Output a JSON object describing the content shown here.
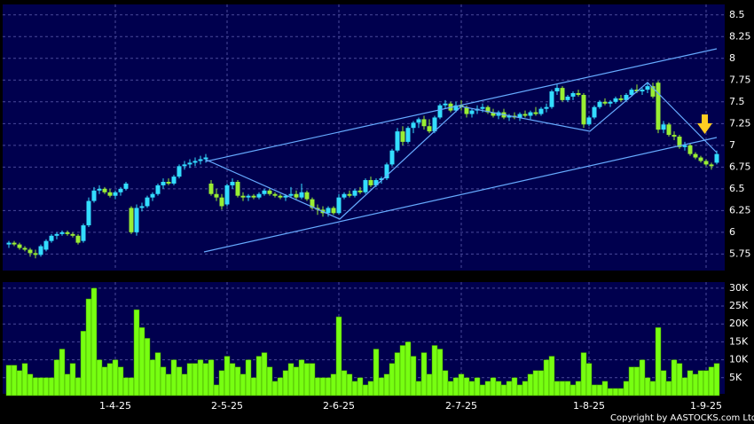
{
  "chart_data": {
    "type": "candlestick",
    "categories": [
      null,
      null,
      null,
      null,
      null,
      null,
      null,
      null,
      null,
      null,
      null,
      null,
      null,
      null,
      null,
      null,
      null,
      null,
      null,
      null,
      "1-4-25",
      null,
      null,
      null,
      null,
      null,
      null,
      null,
      null,
      null,
      null,
      null,
      null,
      null,
      null,
      null,
      null,
      null,
      null,
      null,
      null,
      "2-5-25",
      null,
      null,
      null,
      null,
      null,
      null,
      null,
      null,
      null,
      null,
      null,
      null,
      null,
      null,
      null,
      null,
      null,
      null,
      null,
      null,
      "2-6-25",
      null,
      null,
      null,
      null,
      null,
      null,
      null,
      null,
      null,
      null,
      null,
      null,
      null,
      null,
      null,
      null,
      null,
      null,
      null,
      null,
      null,
      null,
      "2-7-25",
      null,
      null,
      null,
      null,
      null,
      null,
      null,
      null,
      null,
      null,
      null,
      null,
      null,
      null,
      null,
      null,
      null,
      null,
      null,
      null,
      null,
      null,
      null,
      "1-8-25",
      null,
      null,
      null,
      null,
      null,
      null,
      null,
      null,
      null,
      null,
      null,
      null,
      null,
      null,
      null,
      null,
      null,
      null,
      null,
      null,
      null,
      "1-9-25",
      null,
      null
    ],
    "ohlc": [
      [
        5.86,
        5.9,
        5.82,
        5.88
      ],
      [
        5.88,
        5.9,
        5.84,
        5.86
      ],
      [
        5.86,
        5.88,
        5.8,
        5.82
      ],
      [
        5.82,
        5.84,
        5.78,
        5.8
      ],
      [
        5.8,
        5.82,
        5.72,
        5.76
      ],
      [
        5.76,
        5.8,
        5.7,
        5.74
      ],
      [
        5.74,
        5.86,
        5.72,
        5.84
      ],
      [
        5.8,
        5.92,
        5.78,
        5.9
      ],
      [
        5.9,
        5.98,
        5.88,
        5.96
      ],
      [
        5.96,
        6.0,
        5.92,
        5.98
      ],
      [
        5.98,
        6.02,
        5.96,
        6.0
      ],
      [
        6.0,
        6.02,
        5.96,
        5.98
      ],
      [
        5.98,
        6.0,
        5.94,
        5.96
      ],
      [
        5.96,
        5.98,
        5.86,
        5.88
      ],
      [
        5.9,
        6.1,
        5.88,
        6.08
      ],
      [
        6.08,
        6.4,
        6.06,
        6.36
      ],
      [
        6.36,
        6.52,
        6.34,
        6.48
      ],
      [
        6.48,
        6.54,
        6.44,
        6.5
      ],
      [
        6.5,
        6.52,
        6.44,
        6.46
      ],
      [
        6.46,
        6.5,
        6.4,
        6.42
      ],
      [
        6.42,
        6.48,
        6.38,
        6.46
      ],
      [
        6.46,
        6.52,
        6.42,
        6.5
      ],
      [
        6.5,
        6.58,
        6.48,
        6.56
      ],
      [
        6.28,
        6.3,
        5.98,
        6.0
      ],
      [
        6.0,
        6.32,
        5.96,
        6.28
      ],
      [
        6.28,
        6.34,
        6.24,
        6.3
      ],
      [
        6.3,
        6.42,
        6.28,
        6.4
      ],
      [
        6.4,
        6.46,
        6.36,
        6.44
      ],
      [
        6.44,
        6.56,
        6.42,
        6.54
      ],
      [
        6.54,
        6.62,
        6.5,
        6.58
      ],
      [
        6.58,
        6.62,
        6.54,
        6.56
      ],
      [
        6.56,
        6.66,
        6.54,
        6.64
      ],
      [
        6.64,
        6.78,
        6.62,
        6.76
      ],
      [
        6.76,
        6.82,
        6.72,
        6.78
      ],
      [
        6.78,
        6.84,
        6.74,
        6.8
      ],
      [
        6.8,
        6.86,
        6.76,
        6.82
      ],
      [
        6.82,
        6.88,
        6.78,
        6.84
      ],
      [
        6.84,
        6.9,
        6.8,
        6.86
      ],
      [
        6.56,
        6.6,
        6.42,
        6.44
      ],
      [
        6.44,
        6.5,
        6.36,
        6.4
      ],
      [
        6.4,
        6.44,
        6.26,
        6.3
      ],
      [
        6.32,
        6.56,
        6.3,
        6.54
      ],
      [
        6.54,
        6.62,
        6.5,
        6.58
      ],
      [
        6.58,
        6.6,
        6.4,
        6.42
      ],
      [
        6.42,
        6.46,
        6.36,
        6.4
      ],
      [
        6.4,
        6.44,
        6.36,
        6.42
      ],
      [
        6.42,
        6.44,
        6.38,
        6.4
      ],
      [
        6.4,
        6.46,
        6.38,
        6.44
      ],
      [
        6.44,
        6.5,
        6.42,
        6.48
      ],
      [
        6.48,
        6.5,
        6.42,
        6.44
      ],
      [
        6.44,
        6.46,
        6.4,
        6.42
      ],
      [
        6.42,
        6.44,
        6.38,
        6.4
      ],
      [
        6.4,
        6.44,
        6.36,
        6.42
      ],
      [
        6.42,
        6.52,
        6.4,
        6.44
      ],
      [
        6.44,
        6.48,
        6.38,
        6.4
      ],
      [
        6.4,
        6.56,
        6.38,
        6.46
      ],
      [
        6.46,
        6.48,
        6.36,
        6.38
      ],
      [
        6.38,
        6.4,
        6.26,
        6.28
      ],
      [
        6.28,
        6.32,
        6.2,
        6.26
      ],
      [
        6.26,
        6.3,
        6.18,
        6.22
      ],
      [
        6.22,
        6.3,
        6.18,
        6.28
      ],
      [
        6.28,
        6.3,
        6.2,
        6.22
      ],
      [
        6.22,
        6.44,
        6.2,
        6.4
      ],
      [
        6.4,
        6.46,
        6.38,
        6.44
      ],
      [
        6.44,
        6.48,
        6.4,
        6.42
      ],
      [
        6.42,
        6.5,
        6.4,
        6.48
      ],
      [
        6.48,
        6.52,
        6.44,
        6.46
      ],
      [
        6.46,
        6.62,
        6.44,
        6.6
      ],
      [
        6.6,
        6.64,
        6.52,
        6.54
      ],
      [
        6.54,
        6.62,
        6.52,
        6.6
      ],
      [
        6.6,
        6.64,
        6.56,
        6.62
      ],
      [
        6.62,
        6.8,
        6.6,
        6.78
      ],
      [
        6.78,
        6.96,
        6.76,
        6.94
      ],
      [
        6.94,
        7.2,
        6.92,
        7.16
      ],
      [
        7.16,
        7.22,
        7.0,
        7.04
      ],
      [
        7.04,
        7.22,
        7.02,
        7.2
      ],
      [
        7.2,
        7.28,
        7.14,
        7.26
      ],
      [
        7.26,
        7.32,
        7.2,
        7.3
      ],
      [
        7.3,
        7.34,
        7.18,
        7.22
      ],
      [
        7.22,
        7.3,
        7.14,
        7.16
      ],
      [
        7.16,
        7.34,
        7.14,
        7.32
      ],
      [
        7.32,
        7.48,
        7.3,
        7.46
      ],
      [
        7.46,
        7.52,
        7.42,
        7.48
      ],
      [
        7.48,
        7.5,
        7.38,
        7.4
      ],
      [
        7.4,
        7.5,
        7.38,
        7.46
      ],
      [
        7.46,
        7.52,
        7.4,
        7.44
      ],
      [
        7.44,
        7.46,
        7.32,
        7.36
      ],
      [
        7.36,
        7.42,
        7.32,
        7.4
      ],
      [
        7.4,
        7.46,
        7.36,
        7.42
      ],
      [
        7.42,
        7.48,
        7.38,
        7.44
      ],
      [
        7.44,
        7.46,
        7.36,
        7.38
      ],
      [
        7.38,
        7.42,
        7.32,
        7.34
      ],
      [
        7.34,
        7.4,
        7.3,
        7.38
      ],
      [
        7.38,
        7.42,
        7.3,
        7.32
      ],
      [
        7.32,
        7.36,
        7.28,
        7.34
      ],
      [
        7.34,
        7.38,
        7.3,
        7.32
      ],
      [
        7.32,
        7.38,
        7.28,
        7.36
      ],
      [
        7.36,
        7.4,
        7.32,
        7.34
      ],
      [
        7.34,
        7.4,
        7.3,
        7.38
      ],
      [
        7.38,
        7.44,
        7.34,
        7.36
      ],
      [
        7.36,
        7.44,
        7.34,
        7.42
      ],
      [
        7.42,
        7.48,
        7.38,
        7.44
      ],
      [
        7.44,
        7.64,
        7.42,
        7.62
      ],
      [
        7.62,
        7.7,
        7.58,
        7.66
      ],
      [
        7.66,
        7.68,
        7.5,
        7.52
      ],
      [
        7.52,
        7.58,
        7.5,
        7.56
      ],
      [
        7.56,
        7.62,
        7.52,
        7.6
      ],
      [
        7.6,
        7.64,
        7.56,
        7.58
      ],
      [
        7.58,
        7.6,
        7.2,
        7.24
      ],
      [
        7.24,
        7.34,
        7.22,
        7.32
      ],
      [
        7.32,
        7.46,
        7.3,
        7.44
      ],
      [
        7.44,
        7.52,
        7.42,
        7.5
      ],
      [
        7.5,
        7.54,
        7.46,
        7.48
      ],
      [
        7.48,
        7.52,
        7.44,
        7.5
      ],
      [
        7.5,
        7.56,
        7.48,
        7.54
      ],
      [
        7.54,
        7.58,
        7.5,
        7.52
      ],
      [
        7.52,
        7.6,
        7.5,
        7.58
      ],
      [
        7.58,
        7.66,
        7.56,
        7.64
      ],
      [
        7.64,
        7.7,
        7.6,
        7.62
      ],
      [
        7.62,
        7.66,
        7.58,
        7.64
      ],
      [
        7.64,
        7.72,
        7.6,
        7.68
      ],
      [
        7.68,
        7.72,
        7.54,
        7.56
      ],
      [
        7.72,
        7.74,
        7.14,
        7.18
      ],
      [
        7.18,
        7.28,
        7.14,
        7.24
      ],
      [
        7.24,
        7.26,
        7.1,
        7.12
      ],
      [
        7.12,
        7.16,
        7.06,
        7.1
      ],
      [
        7.1,
        7.12,
        6.96,
        6.98
      ],
      [
        6.98,
        7.04,
        6.94,
        7.0
      ],
      [
        7.0,
        7.02,
        6.88,
        6.9
      ],
      [
        6.9,
        6.92,
        6.84,
        6.86
      ],
      [
        6.86,
        6.88,
        6.8,
        6.82
      ],
      [
        6.82,
        6.84,
        6.76,
        6.78
      ],
      [
        6.78,
        6.8,
        6.72,
        6.76
      ],
      [
        6.8,
        6.94,
        6.78,
        6.9
      ]
    ],
    "ylim": [
      5.56,
      8.62
    ],
    "yticks": [
      5.75,
      6,
      6.25,
      6.5,
      6.75,
      7,
      7.25,
      7.5,
      7.75,
      8,
      8.25,
      8.5
    ],
    "up_color": "#33ddff",
    "down_color": "#99ee33",
    "volume": {
      "values": [
        8.5,
        8.5,
        7,
        9,
        6,
        5,
        5,
        5,
        5,
        10,
        13,
        6,
        9,
        5,
        18,
        27,
        30,
        10,
        8,
        9,
        10,
        8,
        5,
        5,
        24,
        19,
        16,
        10,
        12,
        8,
        6,
        10,
        8,
        6,
        9,
        9,
        10,
        9,
        10,
        3,
        7,
        11,
        9,
        8,
        6,
        10,
        5,
        11,
        12,
        8,
        4,
        5,
        7,
        9,
        8,
        10,
        9,
        9,
        5,
        5,
        5,
        6,
        22,
        7,
        6,
        4,
        5,
        3,
        4,
        13,
        5,
        6,
        9,
        12,
        14,
        15,
        11,
        4,
        12,
        6,
        14,
        13,
        7,
        4,
        5,
        6,
        5,
        4,
        5,
        3,
        4,
        5,
        4,
        3,
        4,
        5,
        3,
        4,
        6,
        7,
        7,
        10,
        11,
        4,
        4,
        4,
        3,
        4,
        12,
        9,
        3,
        3,
        4,
        2,
        2,
        2,
        4,
        8,
        8,
        10,
        5,
        4,
        19,
        7,
        4,
        10,
        9,
        5,
        7,
        6,
        7,
        7,
        8,
        9
      ],
      "color": "#77ff11",
      "ylim": [
        0,
        31.7
      ],
      "yticks": [
        {
          "value": 5,
          "label": "5K"
        },
        {
          "value": 10,
          "label": "10K"
        },
        {
          "value": 15,
          "label": "15K"
        },
        {
          "value": 20,
          "label": "20K"
        },
        {
          "value": 25,
          "label": "25K"
        },
        {
          "value": 30,
          "label": "30K"
        }
      ]
    },
    "copyright": "Copyright by AASTOCKS.com Ltd.",
    "grid": true
  }
}
